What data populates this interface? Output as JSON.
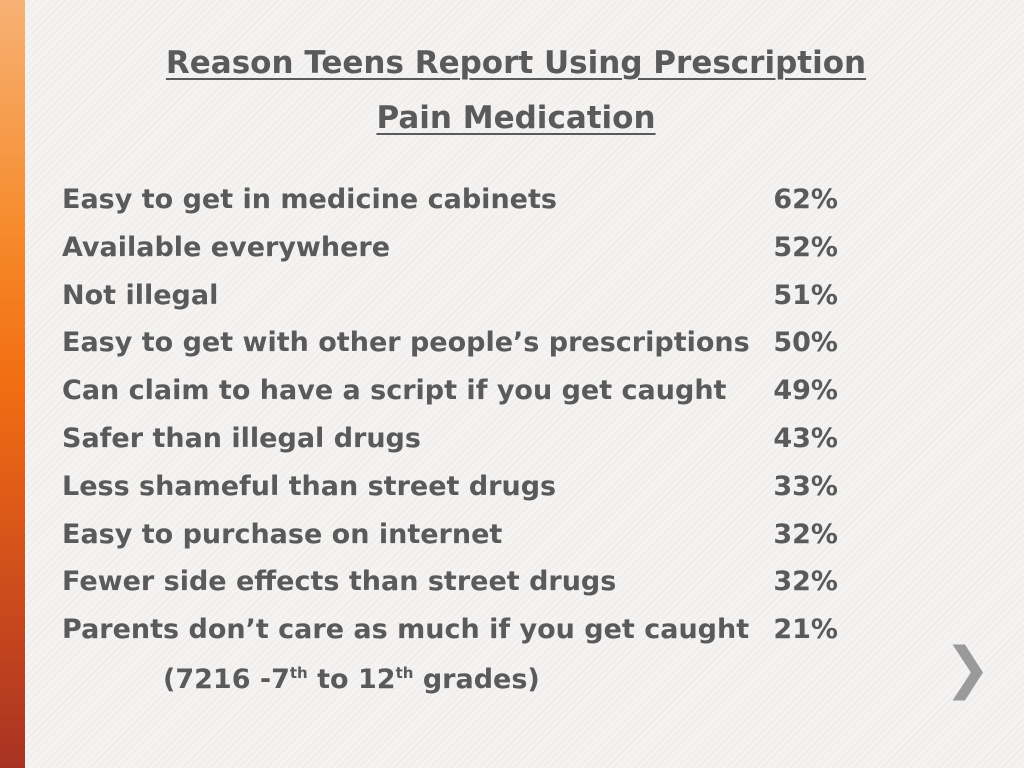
{
  "header": {
    "title_lines": [
      "Reason Teens Report Using Prescription",
      "Pain Medication"
    ]
  },
  "table": {
    "rows": [
      [
        "Easy to get in medicine cabinets",
        "62%"
      ],
      [
        "Available everywhere",
        "52%"
      ],
      [
        "Not illegal",
        "51%"
      ],
      [
        "Easy to get with other people’s prescriptions",
        "50%"
      ],
      [
        "Can claim to have a script if you get caught",
        "49%"
      ],
      [
        "Safer than illegal drugs",
        "43%"
      ],
      [
        "Less shameful than street drugs",
        "33%"
      ],
      [
        "Easy to purchase on internet",
        "32%"
      ],
      [
        "Fewer side effects than street drugs",
        "32%"
      ],
      [
        "Parents don’t care as much if you get caught",
        "21%"
      ]
    ]
  },
  "footnote": {
    "parts": [
      "(7216 -7",
      "th",
      " to 12",
      "th",
      " grades)"
    ]
  }
}
